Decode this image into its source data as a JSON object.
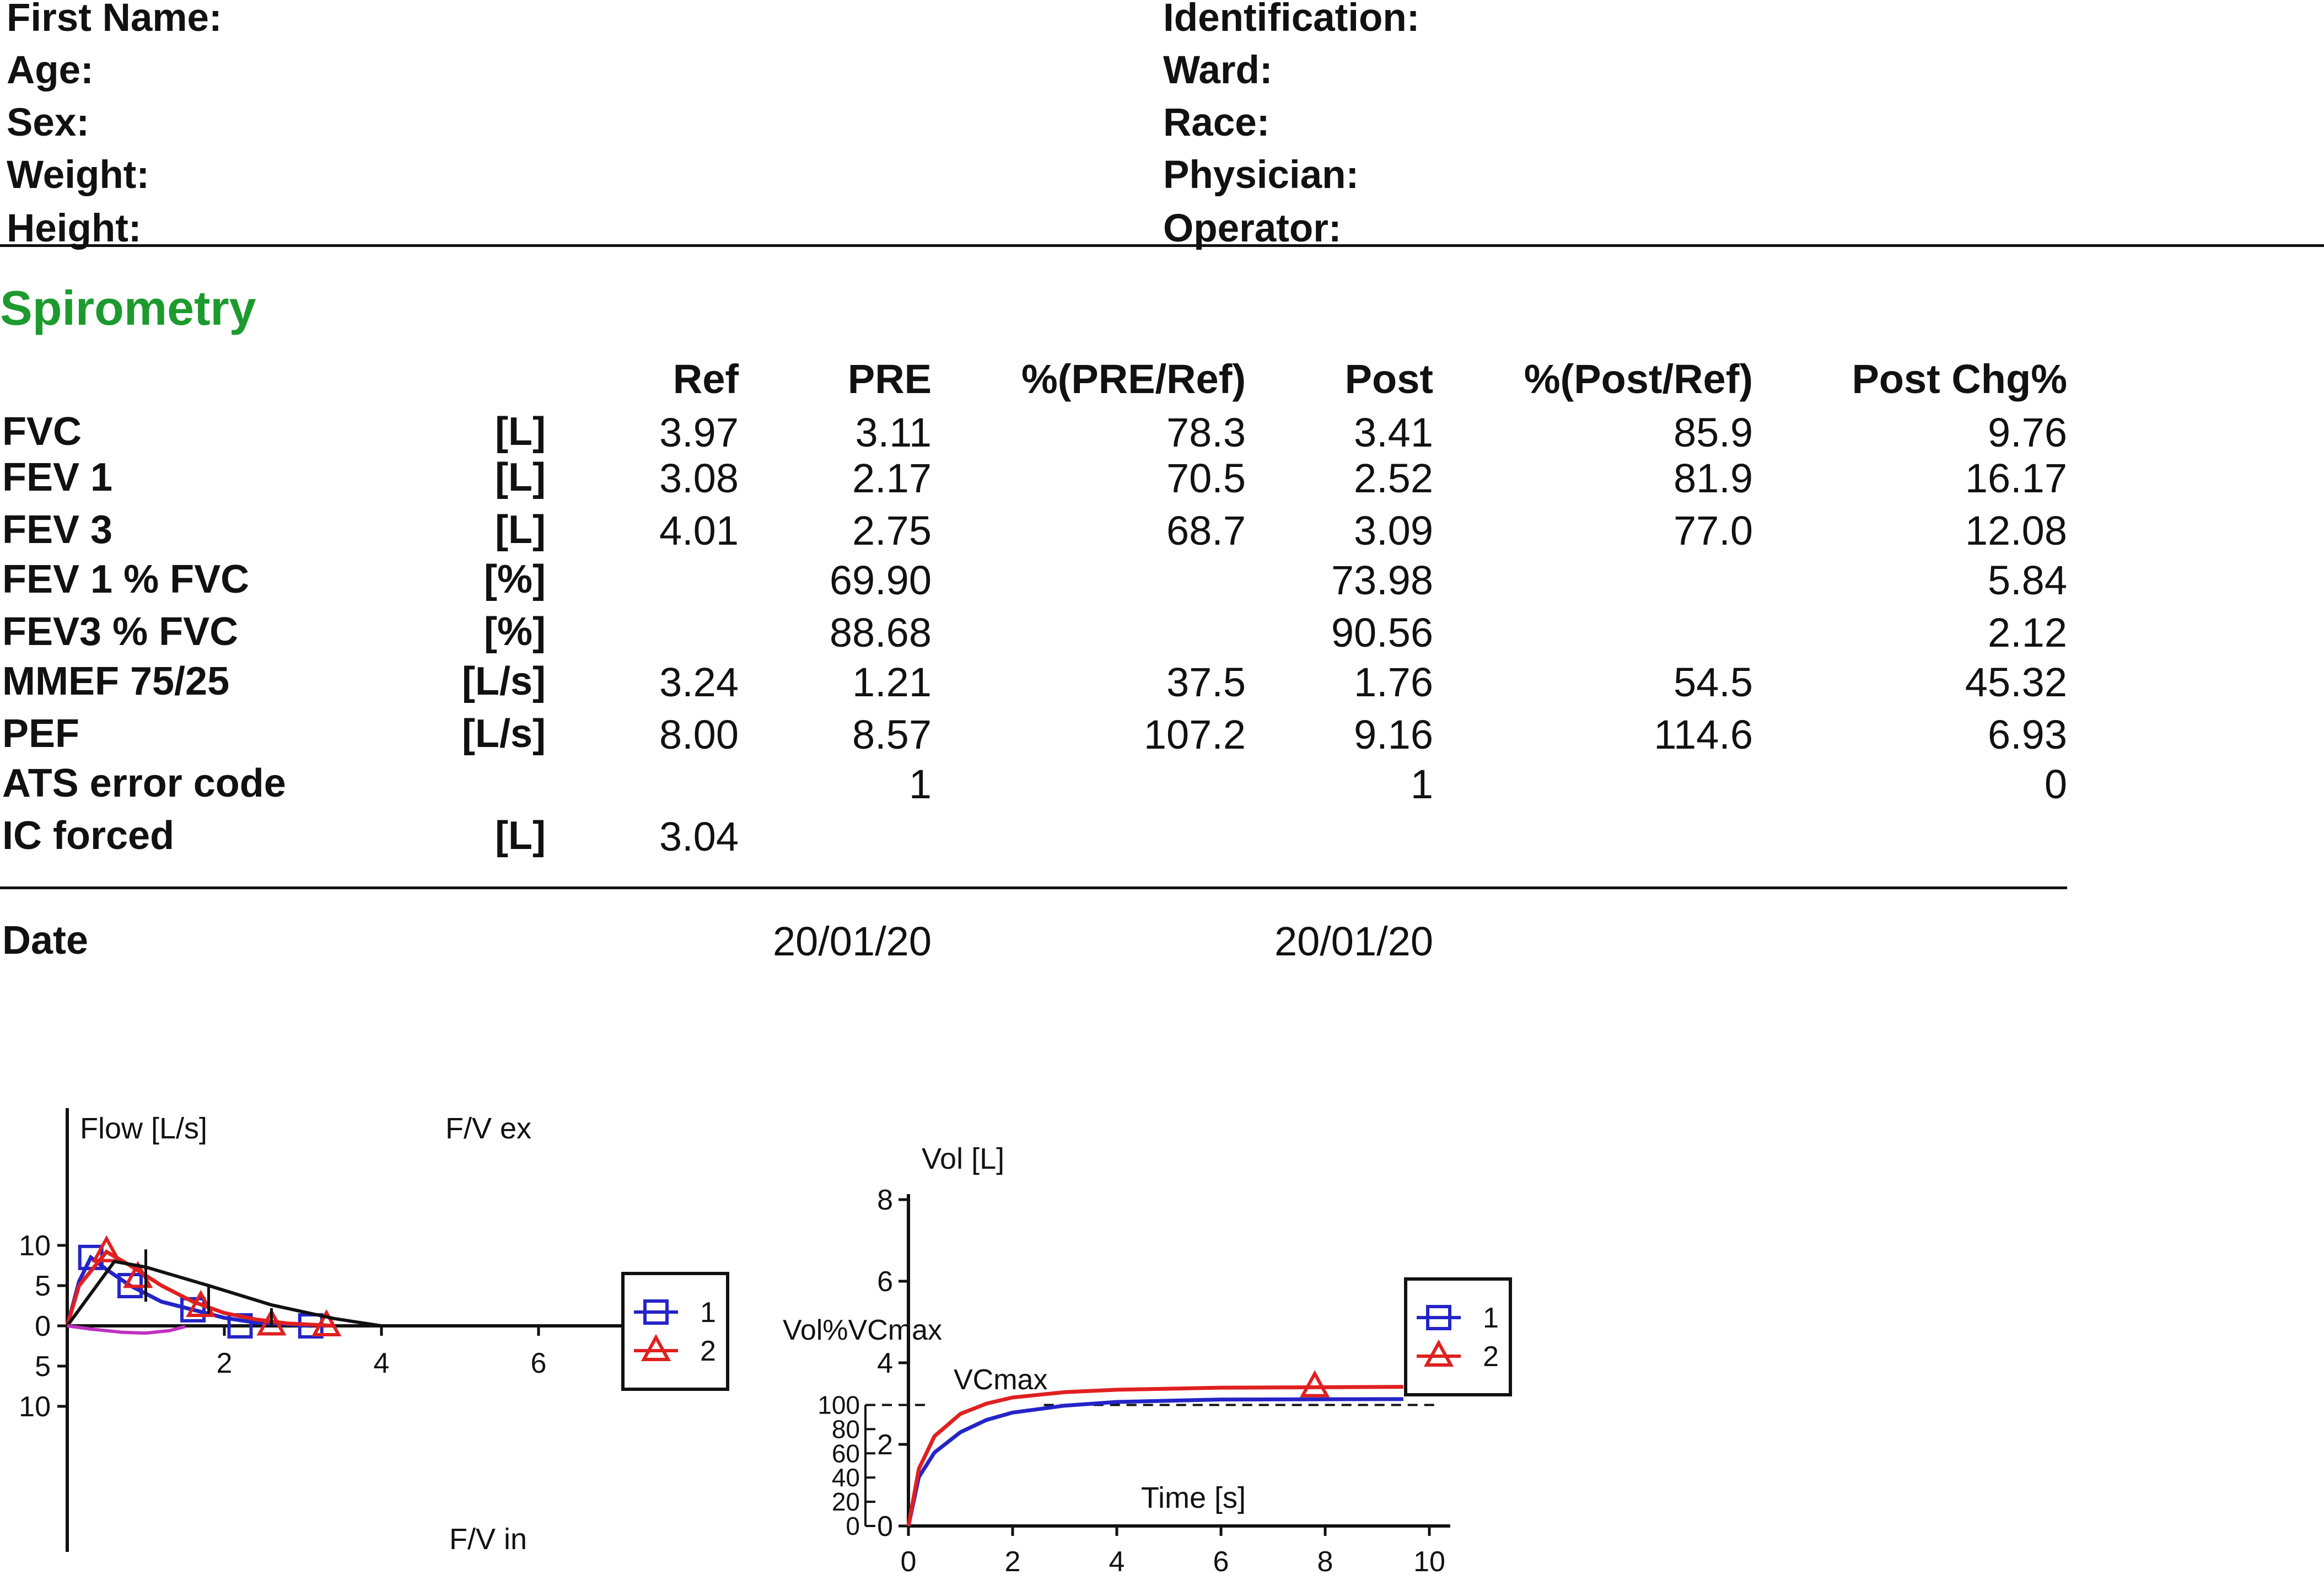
{
  "patient": {
    "left": [
      "First Name:",
      "Age:",
      "Sex:",
      "Weight:",
      "Height:"
    ],
    "right": [
      "Identification:",
      "Ward:",
      "Race:",
      "Physician:",
      "Operator:"
    ]
  },
  "section_title": "Spirometry",
  "table": {
    "headers": [
      "Ref",
      "PRE",
      "%(PRE/Ref)",
      "Post",
      "%(Post/Ref)",
      "Post Chg%"
    ],
    "rows": [
      {
        "label": "FVC",
        "unit": "[L]",
        "values": [
          "3.97",
          "3.11",
          "78.3",
          "3.41",
          "85.9",
          "9.76"
        ]
      },
      {
        "label": "FEV 1",
        "unit": "[L]",
        "values": [
          "3.08",
          "2.17",
          "70.5",
          "2.52",
          "81.9",
          "16.17"
        ]
      },
      {
        "label": "FEV 3",
        "unit": "[L]",
        "values": [
          "4.01",
          "2.75",
          "68.7",
          "3.09",
          "77.0",
          "12.08"
        ]
      },
      {
        "label": "FEV 1 % FVC",
        "unit": "[%]",
        "values": [
          "",
          "69.90",
          "",
          "73.98",
          "",
          "5.84"
        ]
      },
      {
        "label": "FEV3 % FVC",
        "unit": "[%]",
        "values": [
          "",
          "88.68",
          "",
          "90.56",
          "",
          "2.12"
        ]
      },
      {
        "label": "MMEF 75/25",
        "unit": "[L/s]",
        "values": [
          "3.24",
          "1.21",
          "37.5",
          "1.76",
          "54.5",
          "45.32"
        ]
      },
      {
        "label": "PEF",
        "unit": "[L/s]",
        "values": [
          "8.00",
          "8.57",
          "107.2",
          "9.16",
          "114.6",
          "6.93"
        ]
      },
      {
        "label": "ATS error code",
        "unit": "",
        "values": [
          "",
          "1",
          "",
          "1",
          "",
          "0"
        ]
      },
      {
        "label": "IC forced",
        "unit": "[L]",
        "values": [
          "3.04",
          "",
          "",
          "",
          "",
          ""
        ]
      }
    ],
    "date_label": "Date",
    "pre_date": "20/01/20",
    "post_date": "20/01/20"
  },
  "colors": {
    "series_1": "#2424c8",
    "series_2": "#e02020",
    "section_title": "#1d9a2e",
    "magenta_trace": "#c030c0"
  },
  "chart_data": [
    {
      "type": "line",
      "ylabel": "Flow [L/s]",
      "labels": {
        "top": "F/V ex",
        "bottom": "F/V in"
      },
      "xlim": [
        0,
        7
      ],
      "ylim": [
        -13,
        13
      ],
      "x_ticks": [
        2,
        4,
        6
      ],
      "y_ticks": [
        10,
        5,
        0,
        5,
        10
      ],
      "legend": {
        "position": "right",
        "entries": [
          "1",
          "2"
        ],
        "markers": [
          "square",
          "triangle"
        ]
      },
      "series": [
        {
          "name": "1",
          "color": "#2424c8",
          "marker": "square",
          "points": [
            [
              0,
              0
            ],
            [
              0.15,
              5.5
            ],
            [
              0.3,
              8.5
            ],
            [
              0.5,
              7
            ],
            [
              0.8,
              5
            ],
            [
              1.2,
              3
            ],
            [
              1.6,
              2
            ],
            [
              2.0,
              1
            ],
            [
              2.4,
              0.4
            ],
            [
              2.8,
              0.2
            ],
            [
              3.1,
              0
            ]
          ],
          "markers_at": [
            [
              0.3,
              8.5
            ],
            [
              0.8,
              5
            ],
            [
              1.6,
              2
            ],
            [
              2.2,
              0
            ],
            [
              3.1,
              0
            ]
          ]
        },
        {
          "name": "2",
          "color": "#e02020",
          "marker": "triangle",
          "points": [
            [
              0,
              0
            ],
            [
              0.15,
              5
            ],
            [
              0.5,
              9.2
            ],
            [
              0.8,
              7.5
            ],
            [
              1.2,
              5
            ],
            [
              1.6,
              3
            ],
            [
              2.0,
              1.6
            ],
            [
              2.4,
              0.8
            ],
            [
              2.8,
              0.3
            ],
            [
              3.2,
              0.1
            ],
            [
              3.4,
              0
            ]
          ],
          "markers_at": [
            [
              0.5,
              9.2
            ],
            [
              0.9,
              6
            ],
            [
              1.7,
              2.4
            ],
            [
              2.6,
              0.1
            ],
            [
              3.3,
              0
            ]
          ]
        },
        {
          "name": "",
          "color": "#111111",
          "marker": "none",
          "points": [
            [
              0,
              0
            ],
            [
              0.6,
              8
            ],
            [
              1.0,
              7.3
            ],
            [
              1.8,
              5
            ],
            [
              2.6,
              2.6
            ],
            [
              3.4,
              0.9
            ],
            [
              4.0,
              0
            ]
          ]
        },
        {
          "name": "",
          "color": "#c030c0",
          "marker": "none",
          "points": [
            [
              0,
              0
            ],
            [
              0.3,
              -0.4
            ],
            [
              0.7,
              -0.8
            ],
            [
              1.0,
              -0.9
            ],
            [
              1.3,
              -0.6
            ],
            [
              1.5,
              -0.1
            ]
          ]
        }
      ]
    },
    {
      "type": "line",
      "ylabel": "Vol [L]",
      "xlabel": "Time [s]",
      "secondary_ylabel": "Vol%VCmax",
      "annotation": "VCmax",
      "xlim": [
        0,
        10.5
      ],
      "ylim": [
        0,
        8
      ],
      "x_ticks": [
        0,
        2,
        4,
        6,
        8,
        10
      ],
      "y_ticks": [
        0,
        2,
        4,
        6,
        8
      ],
      "secondary_y_ticks": [
        0,
        20,
        40,
        60,
        80,
        100
      ],
      "legend": {
        "position": "right",
        "entries": [
          "1",
          "2"
        ],
        "markers": [
          "square",
          "triangle"
        ]
      },
      "series": [
        {
          "name": "1",
          "color": "#2424c8",
          "marker": "square",
          "points": [
            [
              0,
              0
            ],
            [
              0.2,
              1.2
            ],
            [
              0.5,
              1.8
            ],
            [
              1,
              2.3
            ],
            [
              1.5,
              2.6
            ],
            [
              2,
              2.78
            ],
            [
              3,
              2.95
            ],
            [
              4,
              3.04
            ],
            [
              6,
              3.1
            ],
            [
              9.5,
              3.11
            ]
          ]
        },
        {
          "name": "2",
          "color": "#e02020",
          "marker": "triangle",
          "points": [
            [
              0,
              0
            ],
            [
              0.2,
              1.4
            ],
            [
              0.5,
              2.2
            ],
            [
              1,
              2.75
            ],
            [
              1.5,
              3.0
            ],
            [
              2,
              3.15
            ],
            [
              3,
              3.28
            ],
            [
              4,
              3.34
            ],
            [
              6,
              3.39
            ],
            [
              9.5,
              3.41
            ]
          ],
          "markers_at": [
            [
              7.8,
              3.41
            ]
          ]
        }
      ]
    }
  ]
}
